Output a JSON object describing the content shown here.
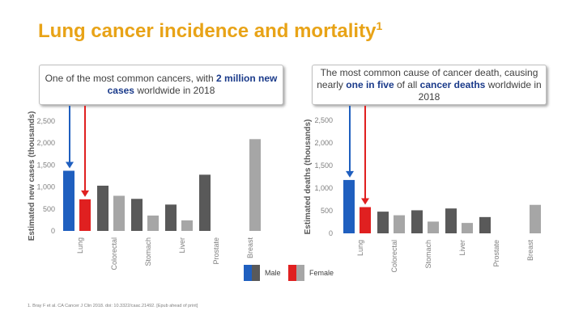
{
  "title": {
    "text": "Lung cancer incidence and mortality",
    "sup": "1"
  },
  "callouts": {
    "left": {
      "pre": "One of the most common cancers, with ",
      "bold1": "2 million",
      "mid": " ",
      "bold2": "new cases",
      "post": " worldwide in 2018"
    },
    "right": {
      "line1": "The most common cause of cancer death, causing nearly ",
      "bold1": "one in five",
      "mid": " of all ",
      "bold2": "cancer deaths",
      "post": " worldwide in 2018"
    }
  },
  "colors": {
    "male_lung": "#1f5fbf",
    "female_lung": "#e02020",
    "male": "#595959",
    "female": "#a6a6a6",
    "arrow_blue": "#1f5fbf",
    "arrow_red": "#e02020"
  },
  "legend": {
    "male": "Male",
    "female": "Female"
  },
  "footnote": "1. Bray F et al. CA Cancer J Clin 2018. doi: 10.3322/caac.21492. [Epub ahead of print]",
  "chart_data": [
    {
      "type": "bar",
      "title": "",
      "ylabel": "Estimated new cases (thousands)",
      "ylim": [
        0,
        2500
      ],
      "yticks": [
        "0",
        "500",
        "1,000",
        "1,500",
        "2,000",
        "2,500"
      ],
      "categories": [
        "Lung",
        "Colorectal",
        "Stomach",
        "Liver",
        "Prostate",
        "Breast"
      ],
      "series": [
        {
          "name": "Male",
          "values": [
            1370,
            1030,
            730,
            600,
            1280,
            null
          ]
        },
        {
          "name": "Female",
          "values": [
            720,
            800,
            350,
            240,
            null,
            2090
          ]
        }
      ]
    },
    {
      "type": "bar",
      "title": "",
      "ylabel": "Estimated deaths (thousands)",
      "ylim": [
        0,
        2500
      ],
      "yticks": [
        "0",
        "500",
        "1,000",
        "1,500",
        "2,000",
        "2,500"
      ],
      "categories": [
        "Lung",
        "Colorectal",
        "Stomach",
        "Liver",
        "Prostate",
        "Breast"
      ],
      "series": [
        {
          "name": "Male",
          "values": [
            1180,
            480,
            510,
            550,
            360,
            null
          ]
        },
        {
          "name": "Female",
          "values": [
            580,
            400,
            260,
            230,
            null,
            630
          ]
        }
      ]
    }
  ]
}
